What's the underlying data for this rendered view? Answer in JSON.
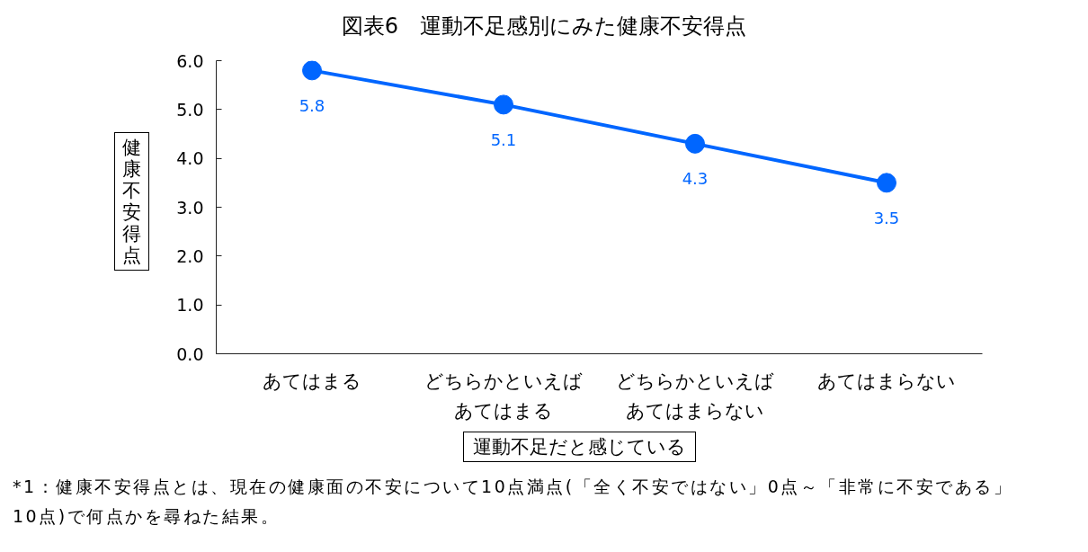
{
  "chart_data": {
    "type": "line",
    "title": "図表6　運動不足感別にみた健康不安得点",
    "categories": [
      "あてはまる",
      "どちらかといえばあてはまる",
      "どちらかといえばあてはまらない",
      "あてはまらない"
    ],
    "series": [
      {
        "color": "#0066ff",
        "values": [
          5.8,
          5.1,
          4.3,
          3.5
        ]
      }
    ],
    "xlabel": "運動不足だと感じている",
    "ylabel": "健康不安得点",
    "ylim": [
      0,
      6
    ],
    "yticks": [
      {
        "value": 0,
        "label": "0.0"
      },
      {
        "value": 1,
        "label": "1.0"
      },
      {
        "value": 2,
        "label": "2.0"
      },
      {
        "value": 3,
        "label": "3.0"
      },
      {
        "value": 4,
        "label": "4.0"
      },
      {
        "value": 5,
        "label": "5.0"
      },
      {
        "value": 6,
        "label": "6.0"
      }
    ],
    "marker": "circle",
    "data_labels": true,
    "annotations": [
      "*1：健康不安得点とは、現在の健康面の不安について10点満点(「全く不安ではない」0点～「非常に不安である」10点)で何点かを尋ねた結果。"
    ]
  }
}
